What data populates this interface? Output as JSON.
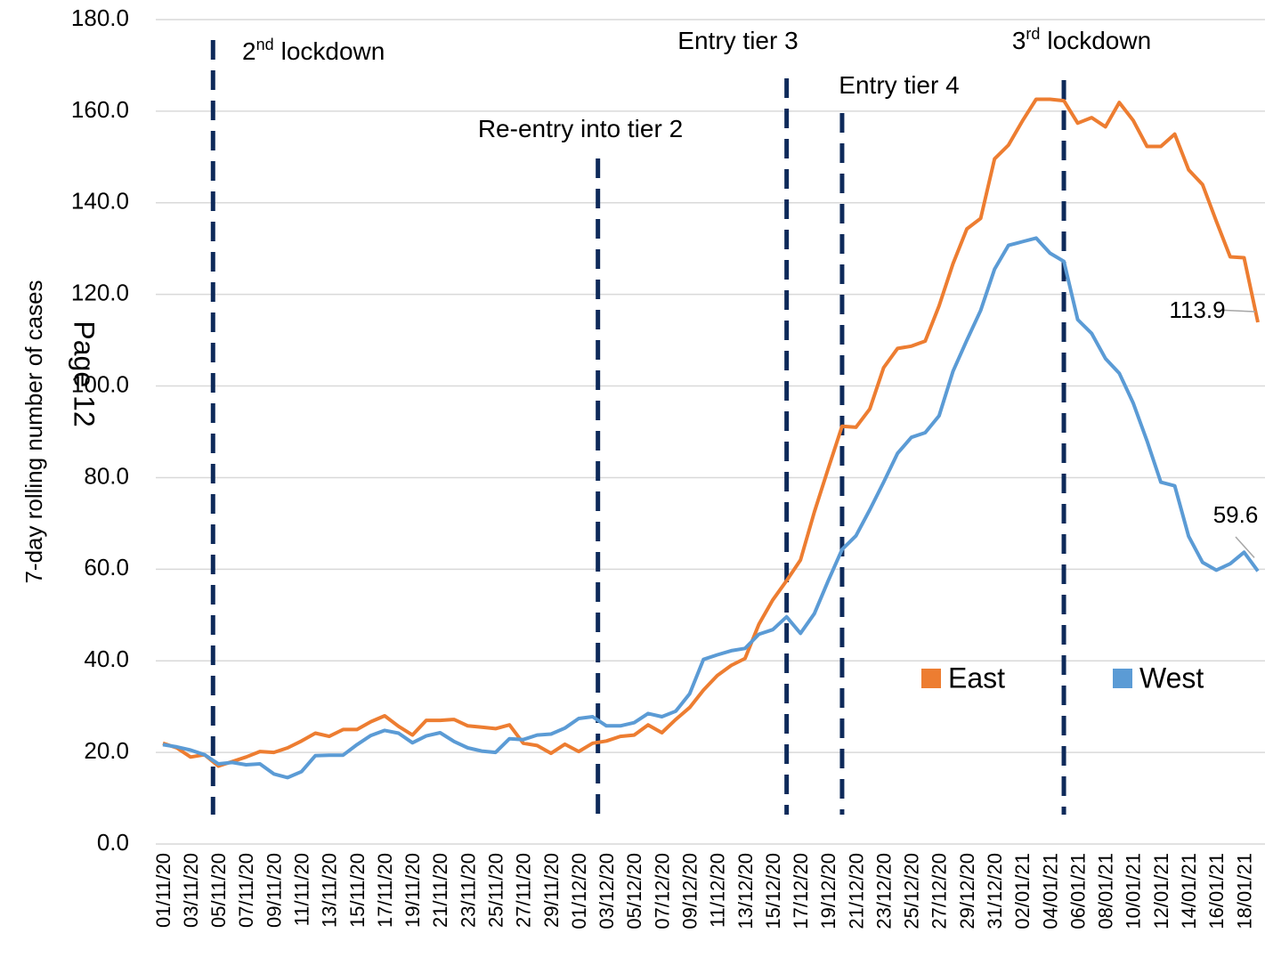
{
  "chart_data": {
    "type": "line",
    "y_label": "7-day rolling number of cases",
    "watermark": "Page 12",
    "categories": [
      "01/11/20",
      null,
      "03/11/20",
      null,
      "05/11/20",
      null,
      "07/11/20",
      null,
      "09/11/20",
      null,
      "11/11/20",
      null,
      "13/11/20",
      null,
      "15/11/20",
      null,
      "17/11/20",
      null,
      "19/11/20",
      null,
      "21/11/20",
      null,
      "23/11/20",
      null,
      "25/11/20",
      null,
      "27/11/20",
      null,
      "29/11/20",
      null,
      "01/12/20",
      null,
      "03/12/20",
      null,
      "05/12/20",
      null,
      "07/12/20",
      null,
      "09/12/20",
      null,
      "11/12/20",
      null,
      "13/12/20",
      null,
      "15/12/20",
      null,
      "17/12/20",
      null,
      "19/12/20",
      null,
      "21/12/20",
      null,
      "23/12/20",
      null,
      "25/12/20",
      null,
      "27/12/20",
      null,
      "29/12/20",
      null,
      "31/12/20",
      null,
      "02/01/21",
      null,
      "04/01/21",
      null,
      "06/01/21",
      null,
      "08/01/21",
      null,
      "10/01/21",
      null,
      "12/01/21",
      null,
      "14/01/21",
      null,
      "16/01/21",
      null,
      "18/01/21",
      null
    ],
    "series": [
      {
        "name": "East",
        "color": "#ed7d31",
        "values": [
          22,
          21,
          19,
          19.5,
          17,
          18,
          19,
          20.2,
          20,
          21,
          22.5,
          24.2,
          23.5,
          25,
          25,
          26.7,
          28,
          25.7,
          23.8,
          27,
          27,
          27.2,
          25.8,
          25.5,
          25.2,
          26,
          22,
          21.5,
          19.8,
          21.8,
          20.2,
          22,
          22.5,
          23.5,
          23.8,
          26,
          24.3,
          27.2,
          29.8,
          33.6,
          36.8,
          39,
          40.5,
          48,
          53.3,
          57.5,
          62,
          72.5,
          82,
          91.2,
          91,
          95,
          104,
          108.2,
          108.7,
          109.8,
          117.5,
          126.7,
          134.3,
          136.6,
          149.6,
          152.6,
          157.8,
          162.6,
          162.6,
          162.3,
          157.4,
          158.6,
          156.6,
          161.9,
          158,
          152.3,
          152.3,
          155,
          147.2,
          144,
          136,
          128.2,
          128,
          113.9
        ],
        "value_labels": [
          null,
          null,
          null,
          null,
          null,
          null,
          null,
          null,
          null,
          null,
          null,
          null,
          null,
          null,
          null,
          null,
          null,
          null,
          null,
          null,
          null,
          null,
          null,
          null,
          null,
          null,
          null,
          null,
          null,
          null,
          null,
          null,
          null,
          null,
          null,
          null,
          null,
          null,
          null,
          null,
          null,
          null,
          null,
          null,
          null,
          null,
          null,
          null,
          null,
          null,
          null,
          null,
          null,
          null,
          null,
          null,
          null,
          null,
          null,
          null,
          null,
          null,
          null,
          null,
          null,
          null,
          null,
          null,
          null,
          null,
          null,
          null,
          null,
          null,
          null,
          null,
          null,
          null,
          null,
          "113.9"
        ]
      },
      {
        "name": "West",
        "color": "#5b9bd5",
        "values": [
          21.7,
          21.2,
          20.5,
          19.5,
          17.5,
          17.8,
          17.3,
          17.5,
          15.3,
          14.5,
          15.8,
          19.3,
          19.4,
          19.4,
          21.7,
          23.7,
          24.8,
          24.2,
          22.1,
          23.6,
          24.3,
          22.4,
          21,
          20.3,
          20,
          23,
          22.8,
          23.8,
          24,
          25.3,
          27.4,
          27.8,
          25.8,
          25.8,
          26.5,
          28.5,
          27.8,
          29,
          32.8,
          40.3,
          41.3,
          42.2,
          42.7,
          45.8,
          46.8,
          49.6,
          46,
          50.3,
          57.5,
          64.3,
          67.3,
          73,
          79,
          85.3,
          88.8,
          89.8,
          93.5,
          103.2,
          110,
          116.5,
          125.5,
          130.7,
          131.5,
          132.3,
          129,
          127.2,
          114.5,
          111.5,
          106,
          102.8,
          96.3,
          88,
          79,
          78.2,
          67.2,
          61.5,
          59.8,
          61.2,
          63.7,
          59.6
        ],
        "value_labels": [
          null,
          null,
          null,
          null,
          null,
          null,
          null,
          null,
          null,
          null,
          null,
          null,
          null,
          null,
          null,
          null,
          null,
          null,
          null,
          null,
          null,
          null,
          null,
          null,
          null,
          null,
          null,
          null,
          null,
          null,
          null,
          null,
          null,
          null,
          null,
          null,
          null,
          null,
          null,
          null,
          null,
          null,
          null,
          null,
          null,
          null,
          null,
          null,
          null,
          null,
          null,
          null,
          null,
          null,
          null,
          null,
          null,
          null,
          null,
          null,
          null,
          null,
          null,
          null,
          null,
          null,
          null,
          null,
          null,
          null,
          null,
          null,
          null,
          null,
          null,
          null,
          null,
          null,
          null,
          "59.6"
        ]
      }
    ],
    "events": [
      {
        "x": "05/11/20",
        "ordinal": "2",
        "suffix": "nd",
        "label": "lockdown"
      },
      {
        "x": "02/12/20",
        "label": "Re-entry into tier 2"
      },
      {
        "x": "16/12/20",
        "label": "Entry tier 3"
      },
      {
        "x": "20/12/20",
        "label": "Entry tier 4"
      },
      {
        "x": "05/01/21",
        "ordinal": "3",
        "suffix": "rd",
        "label": "lockdown"
      }
    ],
    "ylim": [
      0,
      180
    ],
    "yticks": [
      {
        "value": 0,
        "label": "0.0"
      },
      {
        "value": 20,
        "label": "20.0"
      },
      {
        "value": 40,
        "label": "40.0"
      },
      {
        "value": 60,
        "label": "60.0"
      },
      {
        "value": 80,
        "label": "80.0"
      },
      {
        "value": 100,
        "label": "100.0"
      },
      {
        "value": 120,
        "label": "120.0"
      },
      {
        "value": 140,
        "label": "140.0"
      },
      {
        "value": 160,
        "label": "160.0"
      },
      {
        "value": 180,
        "label": "180.0"
      }
    ],
    "grid": true,
    "legend": "lower right"
  }
}
